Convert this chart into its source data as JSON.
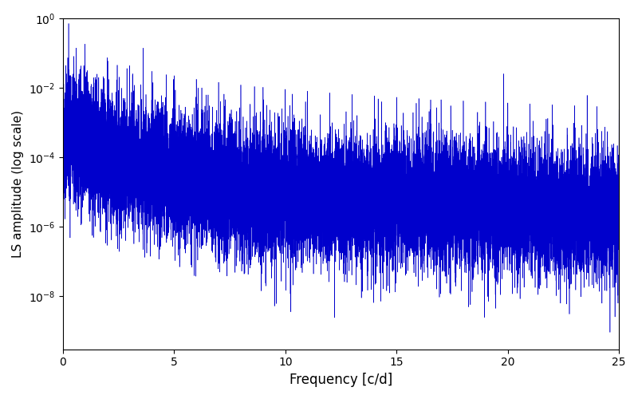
{
  "title": "",
  "xlabel": "Frequency [c/d]",
  "ylabel": "LS amplitude (log scale)",
  "xlim": [
    0,
    25
  ],
  "ylim": [
    3e-10,
    1.0
  ],
  "line_color": "#0000cc",
  "line_width": 0.4,
  "figsize": [
    8.0,
    5.0
  ],
  "dpi": 100,
  "background_color": "#ffffff",
  "yscale": "log",
  "seed": 42,
  "n_points": 20000,
  "freq_max": 25.0
}
